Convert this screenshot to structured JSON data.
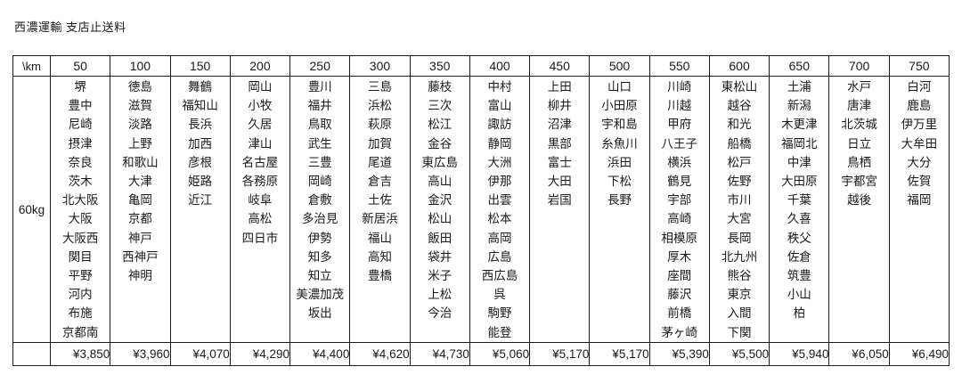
{
  "title": "西濃運輸 支店止送料",
  "table": {
    "corner_label": "\\km",
    "weight_label": "60kg",
    "columns": [
      {
        "km": "50",
        "price": "¥3,850",
        "cities": [
          "堺",
          "豊中",
          "尼崎",
          "摂津",
          "奈良",
          "茨木",
          "北大阪",
          "大阪",
          "大阪西",
          "関目",
          "平野",
          "河内",
          "布施",
          "京都南"
        ]
      },
      {
        "km": "100",
        "price": "¥3,960",
        "cities": [
          "徳島",
          "滋賀",
          "淡路",
          "上野",
          "和歌山",
          "大津",
          "亀岡",
          "京都",
          "神戸",
          "西神戸",
          "神明"
        ]
      },
      {
        "km": "150",
        "price": "¥4,070",
        "cities": [
          "舞鶴",
          "福知山",
          "長浜",
          "加西",
          "彦根",
          "姫路",
          "近江"
        ]
      },
      {
        "km": "200",
        "price": "¥4,290",
        "cities": [
          "岡山",
          "小牧",
          "久居",
          "津山",
          "名古屋",
          "各務原",
          "岐阜",
          "高松",
          "四日市"
        ]
      },
      {
        "km": "250",
        "price": "¥4,400",
        "cities": [
          "豊川",
          "福井",
          "鳥取",
          "武生",
          "三豊",
          "岡崎",
          "倉敷",
          "多治見",
          "伊勢",
          "知多",
          "知立",
          "美濃加茂",
          "坂出"
        ]
      },
      {
        "km": "300",
        "price": "¥4,620",
        "cities": [
          "三島",
          "浜松",
          "萩原",
          "加賀",
          "尾道",
          "倉吉",
          "土佐",
          "新居浜",
          "福山",
          "高知",
          "豊橋"
        ]
      },
      {
        "km": "350",
        "price": "¥4,730",
        "cities": [
          "藤枝",
          "三次",
          "松江",
          "金谷",
          "東広島",
          "高山",
          "金沢",
          "松山",
          "飯田",
          "袋井",
          "米子",
          "上松",
          "今治"
        ]
      },
      {
        "km": "400",
        "price": "¥5,060",
        "cities": [
          "中村",
          "富山",
          "諏訪",
          "静岡",
          "大洲",
          "伊那",
          "出雲",
          "松本",
          "高岡",
          "広島",
          "西広島",
          "呉",
          "駒野",
          "能登"
        ]
      },
      {
        "km": "450",
        "price": "¥5,170",
        "cities": [
          "上田",
          "柳井",
          "沼津",
          "黒部",
          "富士",
          "大田",
          "岩国"
        ]
      },
      {
        "km": "500",
        "price": "¥5,170",
        "cities": [
          "山口",
          "小田原",
          "宇和島",
          "糸魚川",
          "浜田",
          "下松",
          "長野"
        ]
      },
      {
        "km": "550",
        "price": "¥5,390",
        "cities": [
          "川崎",
          "川越",
          "甲府",
          "八王子",
          "横浜",
          "鶴見",
          "宇部",
          "高崎",
          "相模原",
          "厚木",
          "座間",
          "藤沢",
          "前橋",
          "茅ヶ崎"
        ]
      },
      {
        "km": "600",
        "price": "¥5,500",
        "cities": [
          "東松山",
          "越谷",
          "和光",
          "船橋",
          "松戸",
          "佐野",
          "市川",
          "大宮",
          "長岡",
          "北九州",
          "熊谷",
          "東京",
          "入間",
          "下関"
        ]
      },
      {
        "km": "650",
        "price": "¥5,940",
        "cities": [
          "土浦",
          "新潟",
          "木更津",
          "福岡北",
          "中津",
          "大田原",
          "千葉",
          "久喜",
          "秩父",
          "佐倉",
          "筑豊",
          "小山",
          "柏"
        ]
      },
      {
        "km": "700",
        "price": "¥6,050",
        "cities": [
          "水戸",
          "唐津",
          "北茨城",
          "日立",
          "鳥栖",
          "宇都宮",
          "越後"
        ]
      },
      {
        "km": "750",
        "price": "¥6,490",
        "cities": [
          "白河",
          "鹿島",
          "伊万里",
          "大牟田",
          "大分",
          "佐賀",
          "福岡"
        ]
      }
    ]
  }
}
